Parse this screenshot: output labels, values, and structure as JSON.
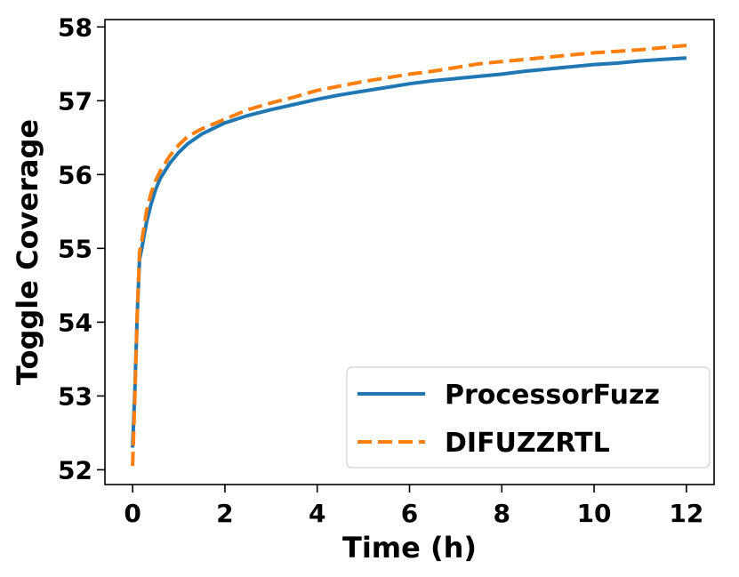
{
  "chart_data": {
    "type": "line",
    "title": "",
    "xlabel": "Time (h)",
    "ylabel": "Toggle Coverage",
    "xlim": [
      -0.6,
      12.6
    ],
    "ylim": [
      51.8,
      58.1
    ],
    "xticks": [
      0,
      2,
      4,
      6,
      8,
      10,
      12
    ],
    "yticks": [
      52,
      53,
      54,
      55,
      56,
      57,
      58
    ],
    "grid": false,
    "legend_position": "lower-right",
    "series": [
      {
        "name": "ProcessorFuzz",
        "color": "#1f77b4",
        "style": "solid",
        "x": [
          0,
          0.05,
          0.1,
          0.15,
          0.2,
          0.3,
          0.4,
          0.5,
          0.6,
          0.8,
          1.0,
          1.2,
          1.5,
          2.0,
          2.5,
          3.0,
          3.5,
          4.0,
          4.5,
          5.0,
          5.5,
          6.0,
          6.5,
          7.0,
          7.5,
          8.0,
          8.5,
          9.0,
          9.5,
          10.0,
          10.5,
          11.0,
          11.5,
          12.0
        ],
        "y": [
          52.3,
          53.1,
          54.1,
          54.85,
          55.0,
          55.35,
          55.6,
          55.8,
          55.95,
          56.15,
          56.3,
          56.42,
          56.55,
          56.7,
          56.8,
          56.88,
          56.95,
          57.02,
          57.08,
          57.13,
          57.18,
          57.23,
          57.27,
          57.3,
          57.33,
          57.36,
          57.4,
          57.43,
          57.46,
          57.49,
          57.51,
          57.54,
          57.56,
          57.58
        ]
      },
      {
        "name": "DIFUZZRTL",
        "color": "#ff7f0e",
        "style": "dashed",
        "x": [
          0,
          0.05,
          0.1,
          0.15,
          0.2,
          0.3,
          0.4,
          0.5,
          0.6,
          0.8,
          1.0,
          1.2,
          1.5,
          2.0,
          2.5,
          3.0,
          3.5,
          4.0,
          4.5,
          5.0,
          5.5,
          6.0,
          6.5,
          7.0,
          7.5,
          8.0,
          8.5,
          9.0,
          9.5,
          10.0,
          10.5,
          11.0,
          11.5,
          12.0
        ],
        "y": [
          52.05,
          53.0,
          54.1,
          54.95,
          55.1,
          55.5,
          55.75,
          55.92,
          56.05,
          56.25,
          56.4,
          56.52,
          56.62,
          56.75,
          56.88,
          56.97,
          57.05,
          57.14,
          57.2,
          57.26,
          57.31,
          57.36,
          57.4,
          57.45,
          57.5,
          57.53,
          57.56,
          57.59,
          57.62,
          57.65,
          57.67,
          57.69,
          57.72,
          57.75
        ]
      }
    ]
  }
}
